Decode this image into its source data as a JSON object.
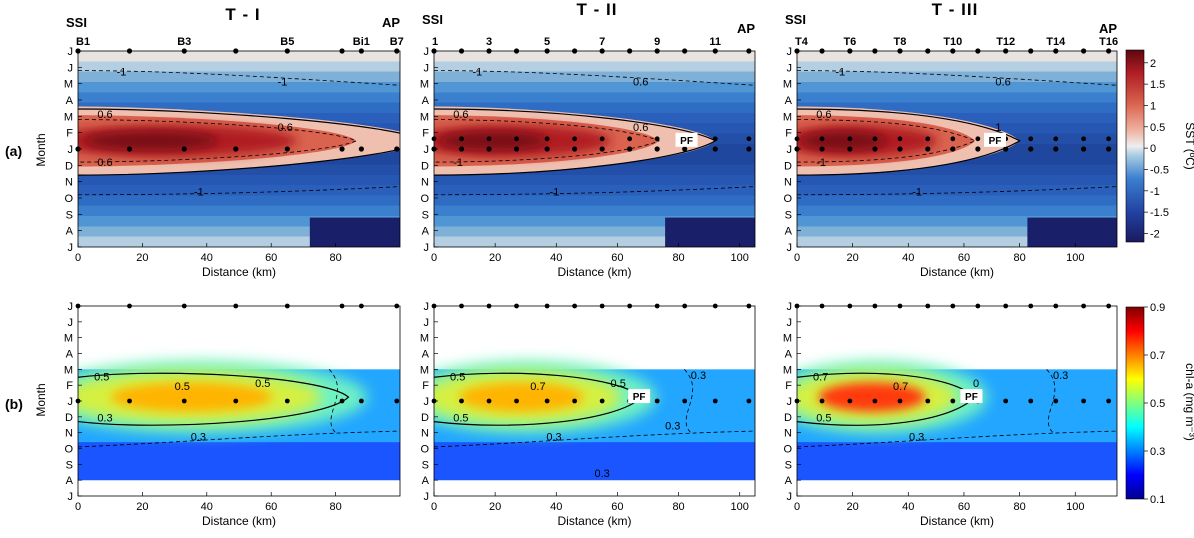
{
  "figure": {
    "row_labels": [
      "(a)",
      "(b)"
    ],
    "month_axis_label": "Month",
    "distance_axis_label": "Distance (km)",
    "end_labels": {
      "left": "SSI",
      "right": "AP"
    },
    "front_label": "PF"
  },
  "chart_data": [
    {
      "type": "heatmap",
      "panel": "a1",
      "title": "T - I",
      "variable": "SST",
      "xlabel": "Distance (km)",
      "ylabel": "Month",
      "xlim": [
        0,
        100
      ],
      "xticks": [
        0,
        20,
        40,
        60,
        80
      ],
      "months": [
        "J",
        "J",
        "M",
        "A",
        "M",
        "F",
        "J",
        "D",
        "N",
        "O",
        "S",
        "A",
        "J"
      ],
      "station_labels": [
        {
          "label": "B1",
          "distance": 0
        },
        {
          "label": "B3",
          "distance": 33
        },
        {
          "label": "B5",
          "distance": 65
        },
        {
          "label": "Bi1",
          "distance": 88
        },
        {
          "label": "B7",
          "distance": 99
        }
      ],
      "station_distances": [
        0,
        16,
        33,
        49,
        65,
        82,
        88,
        99
      ],
      "warm_core": {
        "extent_km": 108,
        "peak": 2.0
      },
      "contours": [
        "-1",
        "0.6",
        "0.6",
        "-1",
        "-1",
        "0.6"
      ],
      "has_front": false
    },
    {
      "type": "heatmap",
      "panel": "a2",
      "title": "T - II",
      "variable": "SST",
      "xlabel": "Distance (km)",
      "ylabel": "Month",
      "xlim": [
        0,
        105
      ],
      "xticks": [
        0,
        20,
        40,
        60,
        80,
        100
      ],
      "months": [
        "J",
        "J",
        "M",
        "A",
        "M",
        "F",
        "J",
        "D",
        "N",
        "O",
        "S",
        "A",
        "J"
      ],
      "station_labels": [
        {
          "label": "1",
          "distance": 0
        },
        {
          "label": "3",
          "distance": 18
        },
        {
          "label": "5",
          "distance": 37
        },
        {
          "label": "7",
          "distance": 55
        },
        {
          "label": "9",
          "distance": 73
        },
        {
          "label": "11",
          "distance": 92
        }
      ],
      "station_distances": [
        0,
        9,
        18,
        27,
        37,
        46,
        55,
        64,
        73,
        82,
        92,
        103
      ],
      "warm_core": {
        "extent_km": 92,
        "peak": 1.7
      },
      "contours": [
        "-1",
        "0.6",
        "0.6",
        "0.6",
        "-1",
        "-1"
      ],
      "has_front": true
    },
    {
      "type": "heatmap",
      "panel": "a3",
      "title": "T - III",
      "variable": "SST",
      "xlabel": "Distance (km)",
      "ylabel": "Month",
      "xlim": [
        0,
        115
      ],
      "xticks": [
        0,
        20,
        40,
        60,
        80,
        100
      ],
      "months": [
        "J",
        "J",
        "M",
        "A",
        "M",
        "F",
        "J",
        "D",
        "N",
        "O",
        "S",
        "A",
        "J"
      ],
      "station_labels": [
        {
          "label": "T4",
          "distance": 0
        },
        {
          "label": "T6",
          "distance": 19
        },
        {
          "label": "T8",
          "distance": 37
        },
        {
          "label": "T10",
          "distance": 56
        },
        {
          "label": "T12",
          "distance": 75
        },
        {
          "label": "T14",
          "distance": 93
        },
        {
          "label": "T16",
          "distance": 112
        }
      ],
      "station_distances": [
        0,
        9,
        19,
        28,
        37,
        47,
        56,
        65,
        75,
        84,
        93,
        103,
        112
      ],
      "warm_core": {
        "extent_km": 80,
        "peak": 2.1
      },
      "contours": [
        "-1",
        "0.6",
        "1",
        "0.6",
        "-1",
        "-1"
      ],
      "has_front": true
    },
    {
      "type": "heatmap",
      "panel": "b1",
      "variable": "chl-a",
      "xlabel": "Distance (km)",
      "ylabel": "Month",
      "xlim": [
        0,
        100
      ],
      "xticks": [
        0,
        20,
        40,
        60,
        80
      ],
      "months": [
        "J",
        "J",
        "M",
        "A",
        "M",
        "F",
        "J",
        "D",
        "N",
        "O",
        "S",
        "A",
        "J"
      ],
      "station_distances": [
        0,
        16,
        33,
        49,
        65,
        82,
        88,
        99
      ],
      "data_rows": [
        4,
        11
      ],
      "blob": {
        "extent_km": 84,
        "peak": 0.62
      },
      "contours": [
        "0.5",
        "0.5",
        "0.5",
        "0.3",
        "0.3"
      ],
      "has_front": false
    },
    {
      "type": "heatmap",
      "panel": "b2",
      "variable": "chl-a",
      "xlabel": "Distance (km)",
      "ylabel": "Month",
      "xlim": [
        0,
        105
      ],
      "xticks": [
        0,
        20,
        40,
        60,
        80,
        100
      ],
      "months": [
        "J",
        "J",
        "M",
        "A",
        "M",
        "F",
        "J",
        "D",
        "N",
        "O",
        "S",
        "A",
        "J"
      ],
      "station_distances": [
        0,
        9,
        18,
        27,
        37,
        46,
        55,
        64,
        73,
        82,
        92,
        103
      ],
      "data_rows": [
        4,
        11
      ],
      "blob": {
        "extent_km": 68,
        "peak": 0.66
      },
      "contours": [
        "0.5",
        "0.7",
        "0.5",
        "0.5",
        "0.3",
        "0.3",
        "0.3",
        "0.3"
      ],
      "has_front": true
    },
    {
      "type": "heatmap",
      "panel": "b3",
      "variable": "chl-a",
      "xlabel": "Distance (km)",
      "ylabel": "Month",
      "xlim": [
        0,
        115
      ],
      "xticks": [
        0,
        20,
        40,
        60,
        80,
        100
      ],
      "months": [
        "J",
        "J",
        "M",
        "A",
        "M",
        "F",
        "J",
        "D",
        "N",
        "O",
        "S",
        "A",
        "J"
      ],
      "station_distances": [
        0,
        9,
        19,
        28,
        37,
        47,
        56,
        65,
        75,
        84,
        93,
        103,
        112
      ],
      "data_rows": [
        4,
        11
      ],
      "blob": {
        "extent_km": 64,
        "peak": 0.82
      },
      "contours": [
        "0.7",
        "0.7",
        "0",
        "0.5",
        "0.3",
        "0.3"
      ],
      "has_front": true
    }
  ],
  "colorbars": {
    "sst": {
      "label": "SST (ºC)",
      "ticks": [
        "2",
        "1.5",
        "1",
        "0.5",
        "0",
        "-0.5",
        "-1",
        "-1.5",
        "-2"
      ],
      "min": -2.2,
      "max": 2.3
    },
    "chl": {
      "label": "chl-a (mg m⁻³)",
      "ticks": [
        "0.9",
        "0.7",
        "0.5",
        "0.3",
        "0.1"
      ],
      "min": 0.1,
      "max": 0.9
    }
  }
}
